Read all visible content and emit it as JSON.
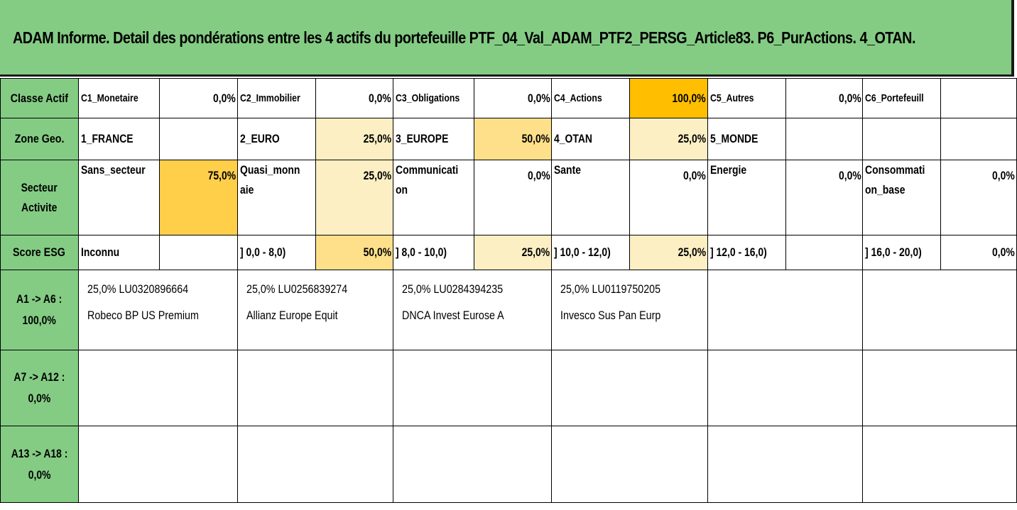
{
  "title": "ADAM Informe. Detail des pondérations entre les 4 actifs du portefeuille PTF_04_Val_ADAM_PTF2_PERSG_Article83. P6_PurActions. 4_OTAN.",
  "colors": {
    "header_green": "#84cc84",
    "shade_light": "#fdefc4",
    "shade_mid": "#ffe08a",
    "shade_med": "#ffcf4a",
    "shade_strong": "#ffbf00"
  },
  "rows": {
    "classe": {
      "header": "Classe Actif",
      "cells": [
        {
          "label": "C1_Monetaire",
          "value": "0,0%"
        },
        {
          "label": "C2_Immobilier",
          "value": "0,0%"
        },
        {
          "label": "C3_Obligations",
          "value": "0,0%"
        },
        {
          "label": "C4_Actions",
          "value": "100,0%"
        },
        {
          "label": "C5_Autres",
          "value": "0,0%"
        },
        {
          "label": "C6_Portefeuill",
          "value": ""
        }
      ]
    },
    "zone": {
      "header": "Zone Geo.",
      "cells": [
        {
          "label": "1_FRANCE",
          "value": ""
        },
        {
          "label": "2_EURO",
          "value": "25,0%"
        },
        {
          "label": "3_EUROPE",
          "value": "50,0%"
        },
        {
          "label": "4_OTAN",
          "value": "25,0%"
        },
        {
          "label": "5_MONDE",
          "value": ""
        },
        {
          "label": "",
          "value": ""
        }
      ]
    },
    "secteur": {
      "header": "Secteur\nActivite",
      "cells": [
        {
          "label": "Sans_secteur",
          "value": "75,0%"
        },
        {
          "label": "Quasi_monn\naie",
          "value": "25,0%"
        },
        {
          "label": "Communicati\non",
          "value": "0,0%"
        },
        {
          "label": "Sante",
          "value": "0,0%"
        },
        {
          "label": "Energie",
          "value": "0,0%"
        },
        {
          "label": "Consommati\non_base",
          "value": "0,0%"
        }
      ]
    },
    "esg": {
      "header": "Score ESG",
      "cells": [
        {
          "label": "Inconnu",
          "value": ""
        },
        {
          "label": "] 0,0 - 8,0)",
          "value": "50,0%"
        },
        {
          "label": "] 8,0 - 10,0)",
          "value": "25,0%"
        },
        {
          "label": "] 10,0 - 12,0)",
          "value": "25,0%"
        },
        {
          "label": "] 12,0 - 16,0)",
          "value": ""
        },
        {
          "label": "] 16,0 - 20,0)",
          "value": "0,0%"
        }
      ]
    }
  },
  "assets": {
    "groups": [
      {
        "header": "A1 -> A6 :\n100,0%",
        "items": [
          {
            "line1": "25,0% LU0320896664",
            "line2": "Robeco BP US Premium"
          },
          {
            "line1": "25,0% LU0256839274",
            "line2": "Allianz Europe Equit"
          },
          {
            "line1": "25,0% LU0284394235",
            "line2": "DNCA Invest Eurose A"
          },
          {
            "line1": "25,0% LU0119750205",
            "line2": "Invesco Sus Pan Eurp"
          }
        ]
      },
      {
        "header": "A7 -> A12 : 0,0%",
        "items": []
      },
      {
        "header": "A13 -> A18 :\n0,0%",
        "items": []
      }
    ]
  }
}
